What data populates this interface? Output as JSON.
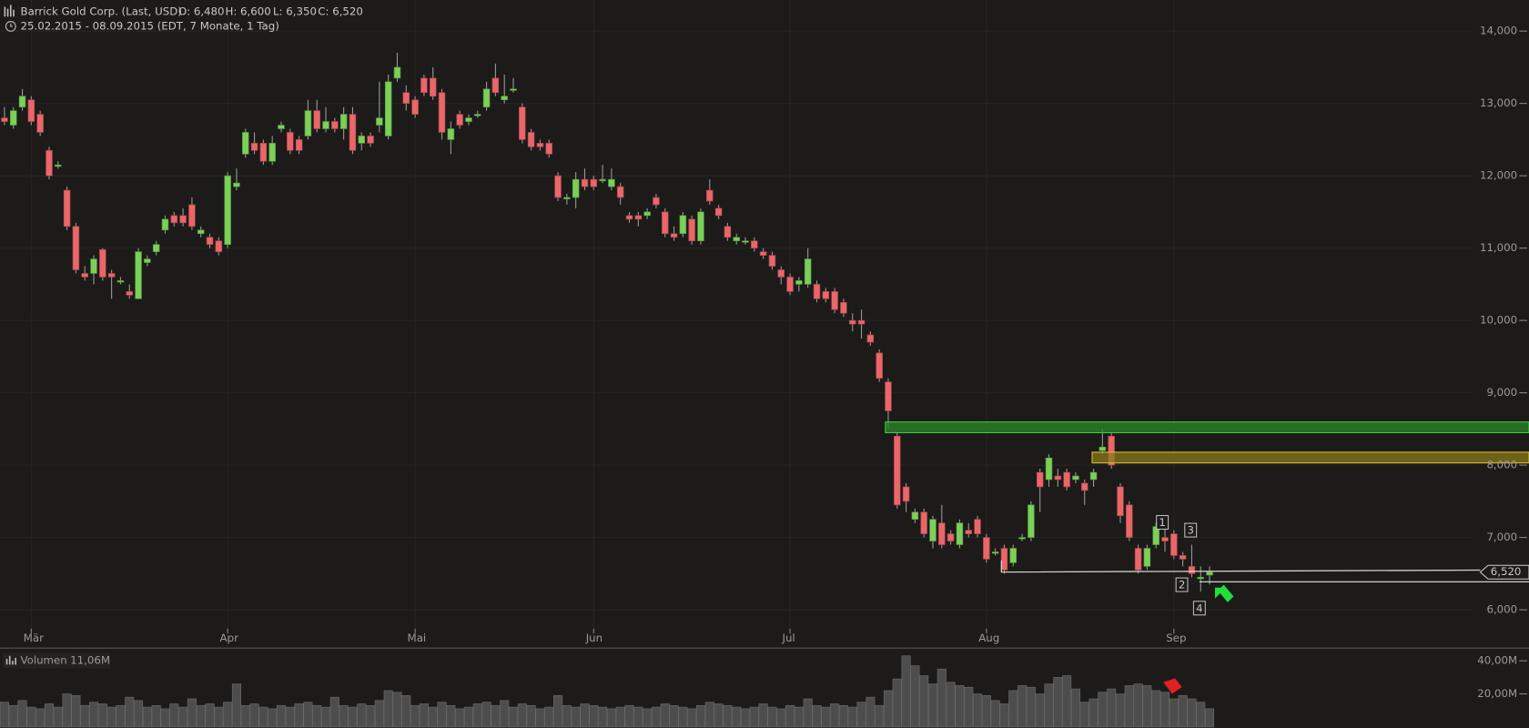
{
  "chart_data": [
    {
      "type": "candlestick",
      "title": "Barrick Gold Corp. (Last, USD)",
      "ohlc_labels": [
        "O: 6,480",
        "H: 6,600",
        "L: 6,350",
        "C: 6,520"
      ],
      "subtitle": "25.02.2015 - 08.09.2015 (EDT, 7 Monate, 1 Tag)",
      "categories": [
        null,
        null,
        null,
        "Mär",
        null,
        null,
        null,
        null,
        null,
        null,
        null,
        null,
        null,
        null,
        null,
        null,
        null,
        null,
        null,
        null,
        null,
        null,
        null,
        null,
        null,
        "Apr",
        null,
        null,
        null,
        null,
        null,
        null,
        null,
        null,
        null,
        null,
        null,
        null,
        null,
        null,
        null,
        null,
        null,
        null,
        null,
        null,
        "Mai",
        null,
        null,
        null,
        null,
        null,
        null,
        null,
        null,
        null,
        null,
        null,
        null,
        null,
        null,
        null,
        null,
        null,
        null,
        null,
        "Jun",
        null,
        null,
        null,
        null,
        null,
        null,
        null,
        null,
        null,
        null,
        null,
        null,
        null,
        null,
        null,
        null,
        null,
        null,
        null,
        null,
        null,
        "Jul",
        null,
        null,
        null,
        null,
        null,
        null,
        null,
        null,
        null,
        null,
        null,
        null,
        null,
        null,
        null,
        null,
        null,
        null,
        null,
        null,
        null,
        "Aug",
        null,
        null,
        null,
        null,
        null,
        null,
        null,
        null,
        null,
        null,
        null,
        null,
        null,
        null,
        null,
        null,
        null,
        null,
        null,
        null,
        "Sep",
        null,
        null,
        null,
        null
      ],
      "open": [
        12.8,
        12.7,
        12.95,
        13.05,
        12.85,
        12.35,
        12.15,
        11.8,
        11.3,
        10.65,
        10.65,
        10.98,
        10.65,
        10.55,
        10.4,
        10.3,
        10.8,
        10.95,
        11.25,
        11.45,
        11.45,
        11.6,
        11.2,
        11.15,
        11.1,
        11.05,
        11.85,
        12.3,
        12.45,
        12.45,
        12.2,
        12.65,
        12.6,
        12.5,
        12.55,
        12.9,
        12.65,
        12.75,
        12.65,
        12.85,
        12.45,
        12.55,
        12.7,
        12.55,
        13.35,
        13.15,
        13.05,
        13.35,
        13.35,
        13.15,
        12.5,
        12.85,
        12.75,
        12.85,
        12.95,
        13.35,
        13.05,
        13.2,
        12.95,
        12.6,
        12.45,
        12.45,
        12.0,
        11.7,
        11.7,
        11.95,
        11.95,
        11.95,
        11.85,
        11.85,
        11.45,
        11.45,
        11.45,
        11.7,
        11.5,
        11.2,
        11.2,
        11.4,
        11.1,
        11.8,
        11.55,
        11.3,
        11.1,
        11.1,
        11.1,
        10.95,
        10.9,
        10.7,
        10.6,
        10.5,
        10.5,
        10.5,
        10.4,
        10.4,
        10.25,
        10.0,
        10.0,
        9.8,
        9.55,
        9.15,
        8.4,
        7.7,
        7.25,
        7.35,
        6.95,
        7.2,
        7.05,
        6.9,
        7.1,
        7.25,
        7.0,
        6.8,
        6.85,
        6.65,
        7.0,
        7.0,
        7.9,
        7.8,
        7.85,
        7.9,
        7.8,
        7.75,
        7.8,
        8.2,
        8.4,
        7.7,
        7.45,
        6.85,
        6.6,
        6.9,
        7.0,
        7.05,
        6.75,
        6.6,
        6.45,
        6.48
      ],
      "high": [
        12.95,
        12.95,
        13.2,
        13.1,
        12.9,
        12.4,
        12.2,
        11.85,
        11.35,
        10.75,
        10.9,
        11.0,
        10.7,
        10.6,
        10.5,
        11.0,
        10.9,
        11.1,
        11.45,
        11.5,
        11.55,
        11.7,
        11.3,
        11.2,
        11.15,
        12.05,
        12.1,
        12.65,
        12.6,
        12.5,
        12.55,
        12.75,
        12.65,
        12.55,
        13.05,
        13.05,
        12.95,
        12.8,
        12.95,
        12.95,
        12.6,
        12.6,
        13.3,
        13.4,
        13.7,
        13.25,
        13.1,
        13.4,
        13.5,
        13.2,
        12.75,
        12.9,
        12.85,
        12.9,
        13.3,
        13.55,
        13.4,
        13.35,
        13.0,
        12.65,
        12.5,
        12.5,
        12.05,
        11.75,
        12.05,
        12.1,
        12.0,
        12.15,
        12.1,
        11.9,
        11.5,
        11.5,
        11.55,
        11.75,
        11.55,
        11.3,
        11.5,
        11.45,
        11.55,
        11.95,
        11.6,
        11.35,
        11.2,
        11.15,
        11.15,
        11.0,
        10.95,
        10.75,
        10.65,
        10.6,
        11.0,
        10.55,
        10.45,
        10.45,
        10.3,
        10.1,
        10.15,
        9.85,
        9.6,
        9.2,
        8.45,
        7.75,
        7.4,
        7.4,
        7.3,
        7.45,
        7.1,
        7.25,
        7.2,
        7.3,
        7.05,
        6.85,
        6.9,
        6.9,
        7.05,
        7.5,
        7.95,
        8.15,
        7.95,
        7.95,
        7.9,
        7.8,
        7.95,
        8.5,
        8.45,
        7.75,
        7.5,
        6.9,
        6.9,
        7.2,
        7.15,
        7.1,
        6.8,
        6.9,
        6.6,
        6.6
      ],
      "low": [
        12.7,
        12.65,
        12.9,
        12.7,
        12.55,
        11.95,
        12.1,
        11.25,
        10.65,
        10.55,
        10.5,
        10.55,
        10.3,
        10.5,
        10.3,
        10.3,
        10.75,
        10.9,
        11.2,
        11.3,
        11.3,
        11.25,
        11.15,
        11.0,
        10.9,
        11.0,
        11.8,
        12.25,
        12.3,
        12.15,
        12.15,
        12.6,
        12.3,
        12.3,
        12.5,
        12.6,
        12.6,
        12.6,
        12.5,
        12.3,
        12.35,
        12.4,
        12.6,
        12.5,
        13.3,
        12.9,
        12.8,
        13.1,
        13.05,
        12.5,
        12.3,
        12.65,
        12.7,
        12.8,
        12.9,
        13.1,
        13.0,
        13.15,
        12.45,
        12.35,
        12.35,
        12.25,
        11.65,
        11.6,
        11.55,
        11.8,
        11.8,
        11.9,
        11.8,
        11.6,
        11.35,
        11.3,
        11.4,
        11.55,
        11.15,
        11.1,
        11.15,
        11.05,
        11.05,
        11.6,
        11.4,
        11.1,
        11.05,
        11.05,
        10.95,
        10.85,
        10.7,
        10.5,
        10.35,
        10.4,
        10.45,
        10.25,
        10.25,
        10.1,
        10.05,
        9.85,
        9.75,
        9.65,
        9.15,
        8.5,
        7.4,
        7.35,
        7.2,
        7.0,
        6.85,
        6.85,
        6.9,
        6.85,
        7.0,
        7.0,
        6.65,
        6.75,
        6.5,
        6.6,
        6.95,
        6.95,
        7.35,
        7.7,
        7.7,
        7.65,
        7.75,
        7.45,
        7.7,
        8.15,
        7.95,
        7.2,
        6.95,
        6.5,
        6.55,
        6.85,
        6.8,
        6.7,
        6.6,
        6.45,
        6.25,
        6.35
      ],
      "close": [
        12.75,
        12.9,
        13.1,
        12.75,
        12.6,
        12.0,
        12.15,
        11.3,
        10.7,
        10.6,
        10.85,
        10.6,
        10.6,
        10.55,
        10.35,
        10.95,
        10.85,
        11.05,
        11.4,
        11.35,
        11.35,
        11.3,
        11.25,
        11.05,
        10.95,
        12.0,
        11.9,
        12.6,
        12.35,
        12.2,
        12.45,
        12.7,
        12.35,
        12.35,
        12.9,
        12.65,
        12.75,
        12.65,
        12.85,
        12.35,
        12.55,
        12.45,
        12.8,
        13.3,
        13.5,
        13.0,
        12.85,
        13.15,
        13.1,
        12.6,
        12.65,
        12.7,
        12.8,
        12.85,
        13.2,
        13.15,
        13.1,
        13.2,
        12.5,
        12.4,
        12.4,
        12.3,
        11.7,
        11.7,
        11.95,
        11.85,
        11.85,
        11.95,
        11.95,
        11.7,
        11.4,
        11.4,
        11.5,
        11.6,
        11.2,
        11.15,
        11.45,
        11.1,
        11.5,
        11.65,
        11.45,
        11.15,
        11.15,
        11.1,
        11.0,
        10.9,
        10.75,
        10.6,
        10.4,
        10.55,
        10.85,
        10.3,
        10.3,
        10.15,
        10.1,
        9.95,
        9.95,
        9.7,
        9.2,
        8.75,
        7.45,
        7.5,
        7.35,
        7.05,
        7.25,
        6.9,
        6.95,
        7.2,
        7.05,
        7.05,
        6.7,
        6.8,
        6.55,
        6.85,
        7.0,
        7.45,
        7.7,
        8.1,
        7.8,
        7.7,
        7.85,
        7.65,
        7.9,
        8.25,
        8.0,
        7.3,
        7.0,
        6.55,
        6.85,
        7.15,
        6.95,
        6.75,
        6.7,
        6.5,
        6.45,
        6.52
      ],
      "up_color": "#7ccf5a",
      "down_color": "#e8676b",
      "ylim": [
        5.74,
        14.43
      ],
      "yticks": [
        {
          "value": 6,
          "label": "6,000"
        },
        {
          "value": 7,
          "label": "7,000"
        },
        {
          "value": 8,
          "label": "8,000"
        },
        {
          "value": 9,
          "label": "9,000"
        },
        {
          "value": 10,
          "label": "10,000"
        },
        {
          "value": 11,
          "label": "11,000"
        },
        {
          "value": 12,
          "label": "12,000"
        },
        {
          "value": 13,
          "label": "13,000"
        },
        {
          "value": 14,
          "label": "14,000"
        }
      ],
      "last_price": {
        "value": 6.52,
        "label": "6,520"
      },
      "annotations": [
        "1",
        "2",
        "3",
        "4"
      ],
      "grid": true
    },
    {
      "type": "bar",
      "title": "Volumen",
      "last_label": "11,06M",
      "values": [
        15,
        13,
        16,
        12,
        11,
        14,
        12,
        20,
        19,
        13,
        15,
        14,
        12,
        13,
        18,
        16,
        12,
        13,
        11,
        14,
        12,
        17,
        13,
        14,
        12,
        15,
        26,
        13,
        14,
        12,
        11,
        13,
        12,
        14,
        15,
        13,
        12,
        18,
        13,
        12,
        14,
        13,
        16,
        22,
        21,
        19,
        13,
        14,
        12,
        15,
        13,
        11,
        12,
        14,
        15,
        13,
        16,
        12,
        14,
        13,
        11,
        12,
        19,
        13,
        12,
        14,
        13,
        12,
        11,
        12,
        13,
        12,
        11,
        12,
        14,
        13,
        12,
        11,
        13,
        15,
        14,
        13,
        12,
        11,
        12,
        14,
        12,
        11,
        13,
        12,
        17,
        13,
        12,
        14,
        13,
        12,
        15,
        18,
        13,
        22,
        29,
        43,
        37,
        31,
        26,
        35,
        27,
        25,
        24,
        20,
        19,
        16,
        14,
        22,
        25,
        24,
        20,
        26,
        30,
        31,
        23,
        15,
        17,
        21,
        23,
        20,
        25,
        26,
        25,
        22,
        21,
        17,
        19,
        17,
        15,
        11.06
      ],
      "color": "#4d4d4d",
      "ylim": [
        0,
        45.9
      ],
      "yticks": [
        {
          "value": 20,
          "label": "20,00M"
        },
        {
          "value": 40,
          "label": "40,00M"
        }
      ]
    }
  ]
}
